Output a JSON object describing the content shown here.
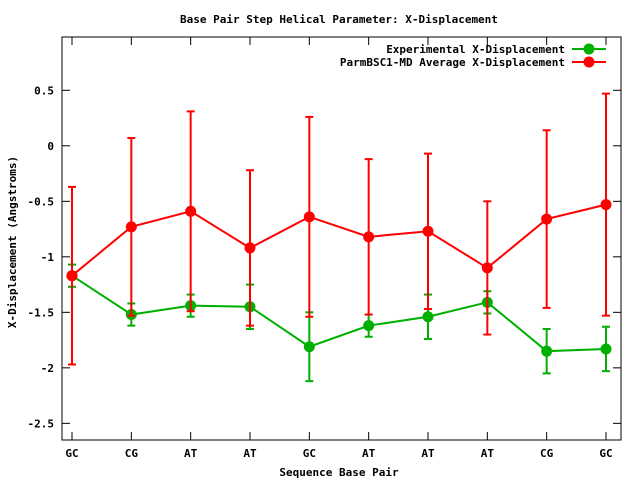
{
  "chart_data": {
    "type": "line",
    "title": "Base Pair Step Helical Parameter: X-Displacement",
    "xlabel": "Sequence Base Pair",
    "ylabel": "X-Displacement (Angstroms)",
    "categories": [
      "GC",
      "CG",
      "AT",
      "AT",
      "GC",
      "AT",
      "AT",
      "AT",
      "CG",
      "GC"
    ],
    "ylim": [
      -2.65,
      0.98
    ],
    "yticks": [
      -2.5,
      -2,
      -1.5,
      -1,
      -0.5,
      0,
      0.5
    ],
    "ytick_labels": [
      "-2.5",
      "-2",
      "-1.5",
      "-1",
      "-0.5",
      "0",
      "0.5"
    ],
    "grid": false,
    "legend_position": "top-right",
    "series": [
      {
        "name": "Experimental X-Displacement",
        "color": "#00b000",
        "values": [
          -1.17,
          -1.52,
          -1.44,
          -1.45,
          -1.81,
          -1.62,
          -1.54,
          -1.41,
          -1.85,
          -1.83
        ],
        "err_low": [
          -1.27,
          -1.62,
          -1.54,
          -1.65,
          -2.12,
          -1.72,
          -1.74,
          -1.51,
          -2.05,
          -2.03
        ],
        "err_high": [
          -1.07,
          -1.42,
          -1.34,
          -1.25,
          -1.5,
          -1.52,
          -1.34,
          -1.31,
          -1.65,
          -1.63
        ]
      },
      {
        "name": "ParmBSC1-MD Average X-Displacement",
        "color": "#ff0000",
        "values": [
          -1.17,
          -0.73,
          -0.59,
          -0.92,
          -0.64,
          -0.82,
          -0.77,
          -1.1,
          -0.66,
          -0.53
        ],
        "err_low": [
          -1.97,
          -1.53,
          -1.49,
          -1.62,
          -1.54,
          -1.52,
          -1.47,
          -1.7,
          -1.46,
          -1.53
        ],
        "err_high": [
          -0.37,
          0.07,
          0.31,
          -0.22,
          0.26,
          -0.12,
          -0.07,
          -0.5,
          0.14,
          0.47
        ]
      }
    ]
  }
}
